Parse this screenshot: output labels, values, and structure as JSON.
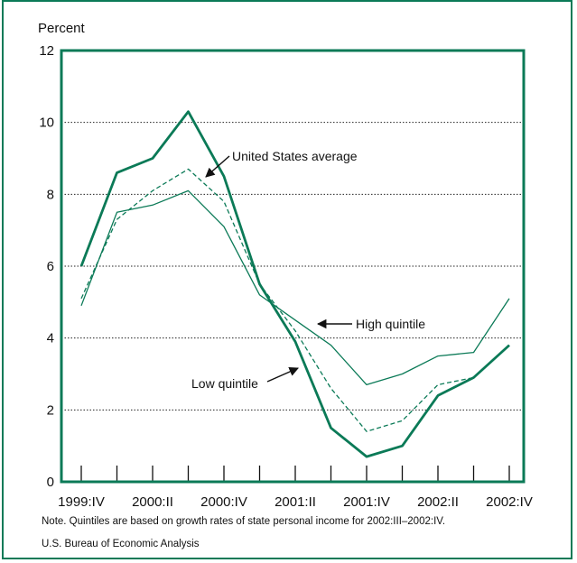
{
  "chart_data": {
    "type": "line",
    "title": "",
    "ylabel": "Percent",
    "xlabel": "",
    "ylim": [
      0,
      12
    ],
    "yticks": [
      0,
      2,
      4,
      6,
      8,
      10,
      12
    ],
    "grid": "horizontal dotted",
    "x": [
      "1999:IV",
      "2000:I",
      "2000:II",
      "2000:III",
      "2000:IV",
      "2001:I",
      "2001:II",
      "2001:III",
      "2001:IV",
      "2002:I",
      "2002:II",
      "2002:III",
      "2002:IV"
    ],
    "xtick_labels": [
      "1999:IV",
      "2000:II",
      "2000:IV",
      "2001:II",
      "2001:IV",
      "2002:II",
      "2002:IV"
    ],
    "series": [
      {
        "name": "Low quintile",
        "style": "thick",
        "color": "#0b7a57",
        "values": [
          6.0,
          8.6,
          9.0,
          10.3,
          8.5,
          5.5,
          3.9,
          1.5,
          0.7,
          1.0,
          2.4,
          2.9,
          3.8
        ]
      },
      {
        "name": "United States average",
        "style": "dashed",
        "color": "#0b7a57",
        "values": [
          5.1,
          7.3,
          8.1,
          8.7,
          7.8,
          5.5,
          4.2,
          2.6,
          1.4,
          1.7,
          2.7,
          2.9,
          3.8
        ]
      },
      {
        "name": "High quintile",
        "style": "thin",
        "color": "#0b7a57",
        "values": [
          4.9,
          7.5,
          7.7,
          8.1,
          7.1,
          5.2,
          4.5,
          3.8,
          2.7,
          3.0,
          3.5,
          3.6,
          5.1
        ]
      }
    ],
    "annotations": [
      {
        "text": "United States average",
        "target": "United States average"
      },
      {
        "text": "High quintile",
        "target": "High quintile"
      },
      {
        "text": "Low quintile",
        "target": "Low quintile"
      }
    ]
  },
  "note": "Note. Quintiles are based on growth rates of state personal income for 2002:III–2002:IV.",
  "source": "U.S. Bureau of Economic Analysis",
  "colors": {
    "accent": "#0b7a57"
  }
}
